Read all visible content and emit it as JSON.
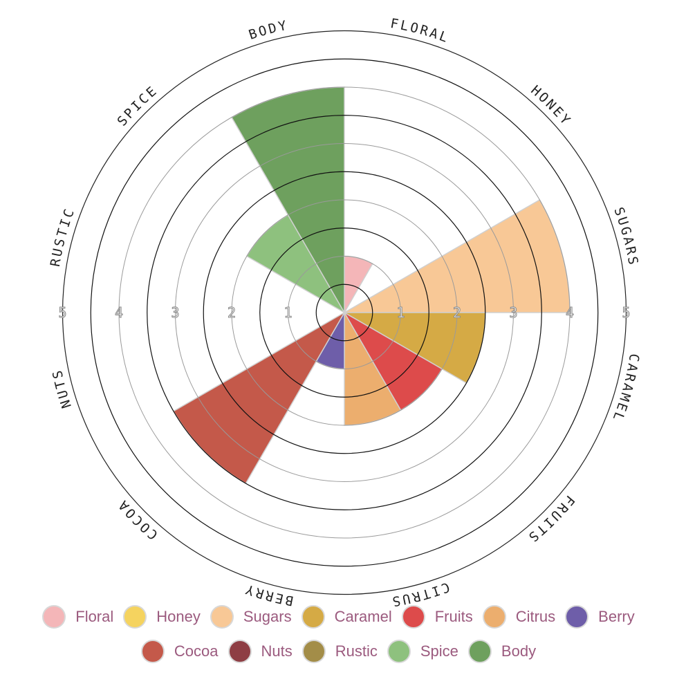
{
  "chart_data": {
    "type": "polar-area",
    "categories": [
      "FLORAL",
      "HONEY",
      "SUGARS",
      "CARAMEL",
      "FRUITS",
      "CITRUS",
      "BERRY",
      "COCOA",
      "NUTS",
      "RUSTIC",
      "SPICE",
      "BODY"
    ],
    "values": [
      1.0,
      0,
      4.0,
      2.5,
      2.0,
      2.0,
      1.0,
      3.5,
      0,
      0,
      2.0,
      4.0
    ],
    "colors": [
      "#f4b6b8",
      "#f5d35f",
      "#f8c896",
      "#d5aa45",
      "#dd4b4b",
      "#ecae6e",
      "#6e5ea9",
      "#c4594a",
      "#8e3e44",
      "#a38d48",
      "#8ec17e",
      "#6ea05e"
    ],
    "r_ticks": [
      1,
      2,
      3,
      4,
      5
    ],
    "rlim": [
      0,
      5
    ],
    "grid": true,
    "legend_position": "bottom"
  },
  "ticks": {
    "right": [
      "1",
      "2",
      "3",
      "4",
      "5"
    ],
    "left": [
      "1",
      "2",
      "3",
      "4",
      "5"
    ]
  },
  "legend": {
    "items": [
      {
        "label": "Floral",
        "color": "#f4b6b8"
      },
      {
        "label": "Honey",
        "color": "#f5d35f"
      },
      {
        "label": "Sugars",
        "color": "#f8c896"
      },
      {
        "label": "Caramel",
        "color": "#d5aa45"
      },
      {
        "label": "Fruits",
        "color": "#dd4b4b"
      },
      {
        "label": "Citrus",
        "color": "#ecae6e"
      },
      {
        "label": "Berry",
        "color": "#6e5ea9"
      },
      {
        "label": "Cocoa",
        "color": "#c4594a"
      },
      {
        "label": "Nuts",
        "color": "#8e3e44"
      },
      {
        "label": "Rustic",
        "color": "#a38d48"
      },
      {
        "label": "Spice",
        "color": "#8ec17e"
      },
      {
        "label": "Body",
        "color": "#6ea05e"
      }
    ]
  }
}
